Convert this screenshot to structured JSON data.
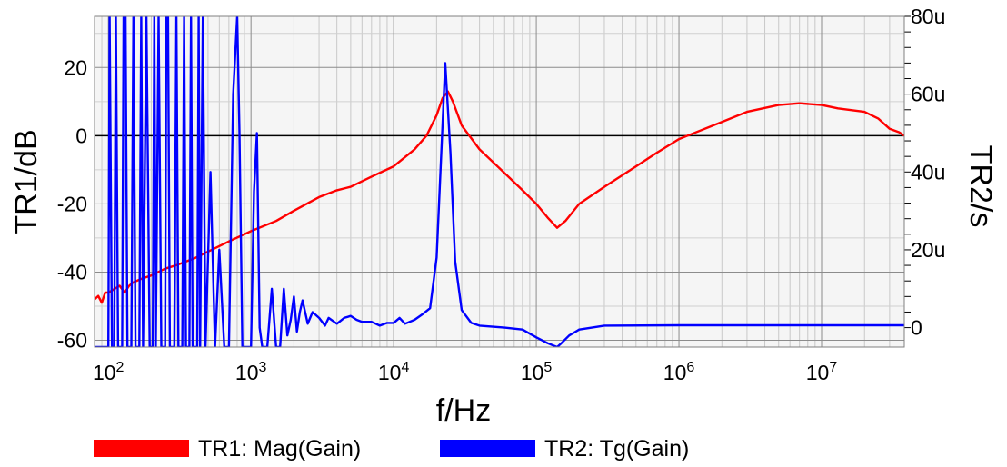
{
  "chart_data": {
    "type": "line",
    "xlabel": "f/Hz",
    "ylabel_left": "TR1/dB",
    "ylabel_right": "TR2/s",
    "x_scale": "log",
    "xlim": [
      80,
      38000000
    ],
    "x_ticks": [
      {
        "value": 100,
        "base": "10",
        "exp": "2"
      },
      {
        "value": 1000,
        "base": "10",
        "exp": "3"
      },
      {
        "value": 10000,
        "base": "10",
        "exp": "4"
      },
      {
        "value": 100000,
        "base": "10",
        "exp": "5"
      },
      {
        "value": 1000000,
        "base": "10",
        "exp": "6"
      },
      {
        "value": 10000000,
        "base": "10",
        "exp": "7"
      }
    ],
    "ylim_left": [
      -62,
      35
    ],
    "y_ticks_left": [
      {
        "value": 20,
        "label": "20"
      },
      {
        "value": 0,
        "label": "0"
      },
      {
        "value": -20,
        "label": "-20"
      },
      {
        "value": -40,
        "label": "-40"
      },
      {
        "value": -60,
        "label": "-60"
      }
    ],
    "ylim_right": [
      -5e-06,
      8e-05
    ],
    "y_ticks_right": [
      {
        "value": 8e-05,
        "label": "80u"
      },
      {
        "value": 6e-05,
        "label": "60u"
      },
      {
        "value": 4e-05,
        "label": "40u"
      },
      {
        "value": 2e-05,
        "label": "20u"
      },
      {
        "value": 0,
        "label": "0"
      }
    ],
    "grid": true,
    "legend_position": "bottom",
    "series": [
      {
        "name": "TR1: Mag(Gain)",
        "axis": "left",
        "color": "#ff0000",
        "points": [
          [
            80,
            -48
          ],
          [
            85,
            -47
          ],
          [
            90,
            -49
          ],
          [
            95,
            -46
          ],
          [
            100,
            -46
          ],
          [
            110,
            -45
          ],
          [
            120,
            -44
          ],
          [
            130,
            -46
          ],
          [
            140,
            -44
          ],
          [
            150,
            -43
          ],
          [
            170,
            -42
          ],
          [
            200,
            -41
          ],
          [
            250,
            -39
          ],
          [
            300,
            -38
          ],
          [
            400,
            -36
          ],
          [
            500,
            -34
          ],
          [
            700,
            -31
          ],
          [
            1000,
            -28
          ],
          [
            1500,
            -25
          ],
          [
            2000,
            -22
          ],
          [
            3000,
            -18
          ],
          [
            4000,
            -16
          ],
          [
            5000,
            -15
          ],
          [
            7000,
            -12
          ],
          [
            10000,
            -9
          ],
          [
            14000,
            -4
          ],
          [
            17000,
            0
          ],
          [
            20000,
            6
          ],
          [
            22000,
            11
          ],
          [
            24000,
            13
          ],
          [
            26000,
            10
          ],
          [
            30000,
            3
          ],
          [
            40000,
            -4
          ],
          [
            60000,
            -11
          ],
          [
            80000,
            -16
          ],
          [
            100000,
            -20
          ],
          [
            120000,
            -24
          ],
          [
            140000,
            -27
          ],
          [
            160000,
            -25
          ],
          [
            200000,
            -20
          ],
          [
            300000,
            -15
          ],
          [
            500000,
            -9
          ],
          [
            700000,
            -5
          ],
          [
            1000000,
            -1
          ],
          [
            2000000,
            4
          ],
          [
            3000000,
            7
          ],
          [
            5000000,
            9
          ],
          [
            7000000,
            9.5
          ],
          [
            10000000,
            9
          ],
          [
            13000000,
            8
          ],
          [
            20000000,
            7
          ],
          [
            25000000,
            5
          ],
          [
            30000000,
            2
          ],
          [
            35000000,
            1
          ],
          [
            38000000,
            0
          ]
        ]
      },
      {
        "name": "TR2: Tg(Gain)",
        "axis": "right",
        "color": "#0000ff",
        "points": [
          [
            80,
            -5e-06
          ],
          [
            100,
            -5e-06
          ],
          [
            102,
            8e-05
          ],
          [
            106,
            -5e-06
          ],
          [
            110,
            -5e-06
          ],
          [
            113,
            8e-05
          ],
          [
            117,
            -5e-06
          ],
          [
            125,
            -5e-06
          ],
          [
            128,
            8e-05
          ],
          [
            132,
            8e-05
          ],
          [
            136,
            -5e-06
          ],
          [
            145,
            -5e-06
          ],
          [
            150,
            8e-05
          ],
          [
            155,
            -5e-06
          ],
          [
            165,
            -5e-06
          ],
          [
            170,
            8e-05
          ],
          [
            175,
            -5e-06
          ],
          [
            185,
            8e-05
          ],
          [
            195,
            -5e-06
          ],
          [
            205,
            -5e-06
          ],
          [
            210,
            8e-05
          ],
          [
            215,
            -5e-06
          ],
          [
            225,
            8e-05
          ],
          [
            235,
            -5e-06
          ],
          [
            250,
            -5e-06
          ],
          [
            255,
            8e-05
          ],
          [
            262,
            8e-05
          ],
          [
            270,
            -5e-06
          ],
          [
            290,
            -5e-06
          ],
          [
            300,
            8e-05
          ],
          [
            310,
            -5e-06
          ],
          [
            330,
            -5e-06
          ],
          [
            340,
            8e-05
          ],
          [
            350,
            -5e-06
          ],
          [
            370,
            -5e-06
          ],
          [
            380,
            8e-05
          ],
          [
            390,
            -5e-06
          ],
          [
            420,
            -5e-06
          ],
          [
            430,
            8e-05
          ],
          [
            440,
            -5e-06
          ],
          [
            460,
            8e-05
          ],
          [
            480,
            -5e-06
          ],
          [
            520,
            4e-05
          ],
          [
            560,
            -5e-06
          ],
          [
            600,
            2e-05
          ],
          [
            650,
            -5e-06
          ],
          [
            700,
            -5e-06
          ],
          [
            750,
            6e-05
          ],
          [
            800,
            8e-05
          ],
          [
            830,
            5e-05
          ],
          [
            870,
            -5e-06
          ],
          [
            950,
            -5e-06
          ],
          [
            1000,
            -5e-06
          ],
          [
            1050,
            3.5e-05
          ],
          [
            1100,
            5e-05
          ],
          [
            1150,
            0
          ],
          [
            1200,
            -5e-06
          ],
          [
            1300,
            -5e-06
          ],
          [
            1400,
            1e-05
          ],
          [
            1500,
            -5e-06
          ],
          [
            1600,
            -5e-06
          ],
          [
            1700,
            1e-05
          ],
          [
            1800,
            -2e-06
          ],
          [
            1900,
            2e-06
          ],
          [
            2000,
            8e-06
          ],
          [
            2100,
            -1e-06
          ],
          [
            2200,
            4e-06
          ],
          [
            2300,
            7e-06
          ],
          [
            2500,
            1e-06
          ],
          [
            2700,
            4e-06
          ],
          [
            3000,
            2.5e-06
          ],
          [
            3300,
            5e-07
          ],
          [
            3500,
            2.5e-06
          ],
          [
            4000,
            1e-06
          ],
          [
            4500,
            2.5e-06
          ],
          [
            5000,
            3e-06
          ],
          [
            5500,
            2e-06
          ],
          [
            6000,
            1.5e-06
          ],
          [
            7000,
            1.5e-06
          ],
          [
            8000,
            5e-07
          ],
          [
            9000,
            1.2e-06
          ],
          [
            10000,
            1.2e-06
          ],
          [
            11000,
            2.5e-06
          ],
          [
            12000,
            1e-06
          ],
          [
            14000,
            2e-06
          ],
          [
            16000,
            3.5e-06
          ],
          [
            18000,
            5e-06
          ],
          [
            20000,
            1.8e-05
          ],
          [
            22000,
            5.2e-05
          ],
          [
            23000,
            6.8e-05
          ],
          [
            25000,
            4.5e-05
          ],
          [
            27000,
            1.7e-05
          ],
          [
            30000,
            4.5e-06
          ],
          [
            35000,
            1.2e-06
          ],
          [
            40000,
            5e-07
          ],
          [
            60000,
            0
          ],
          [
            80000,
            -5e-07
          ],
          [
            100000,
            -2.5e-06
          ],
          [
            120000,
            -4e-06
          ],
          [
            140000,
            -5e-06
          ],
          [
            150000,
            -4e-06
          ],
          [
            170000,
            -2e-06
          ],
          [
            200000,
            -5e-07
          ],
          [
            300000,
            5e-07
          ],
          [
            1000000,
            6e-07
          ],
          [
            10000000,
            6e-07
          ],
          [
            38000000,
            6e-07
          ]
        ]
      }
    ]
  }
}
